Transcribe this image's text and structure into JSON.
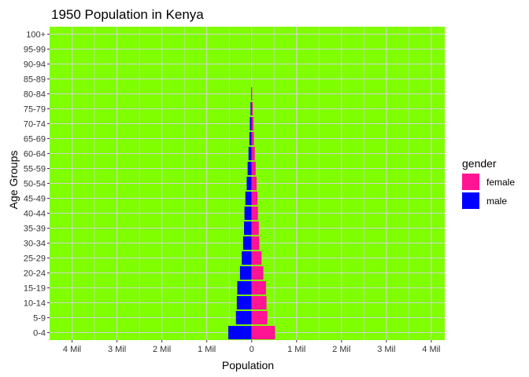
{
  "chart_data": {
    "type": "bar",
    "orientation": "horizontal",
    "title": "1950 Population in Kenya",
    "xlabel": "Population",
    "ylabel": "Age Groups",
    "xlim": [
      -4.5,
      4.3
    ],
    "x_tick_values": [
      -4,
      -3,
      -2,
      -1,
      0,
      1,
      2,
      3,
      4
    ],
    "x_tick_labels": [
      "4 Mil",
      "3 Mil",
      "2 Mil",
      "1 Mil",
      "0",
      "1 Mil",
      "2 Mil",
      "3 Mil",
      "4 Mil"
    ],
    "categories": [
      "0-4",
      "5-9",
      "10-14",
      "15-19",
      "20-24",
      "25-29",
      "30-34",
      "35-39",
      "40-44",
      "45-49",
      "50-54",
      "55-59",
      "60-64",
      "65-69",
      "70-74",
      "75-79",
      "80-84",
      "85-89",
      "90-94",
      "95-99",
      "100+"
    ],
    "series": [
      {
        "name": "male",
        "values": [
          -0.52,
          -0.35,
          -0.33,
          -0.32,
          -0.26,
          -0.22,
          -0.19,
          -0.17,
          -0.16,
          -0.14,
          -0.11,
          -0.09,
          -0.07,
          -0.05,
          -0.04,
          -0.025,
          -0.01,
          0,
          0,
          0,
          0
        ]
      },
      {
        "name": "female",
        "values": [
          0.52,
          0.35,
          0.33,
          0.32,
          0.26,
          0.22,
          0.17,
          0.16,
          0.14,
          0.13,
          0.11,
          0.09,
          0.07,
          0.05,
          0.04,
          0.025,
          0.01,
          0,
          0,
          0,
          0
        ]
      }
    ],
    "grid": true,
    "legend": {
      "title": "gender",
      "placement": "right",
      "entries": [
        {
          "label": "female",
          "color": "#ff1493"
        },
        {
          "label": "male",
          "color": "#0000ff"
        }
      ]
    },
    "colors": {
      "panel_background": "#7fff00",
      "grid": "#d3d3d3",
      "male": "#0000ff",
      "female": "#ff1493"
    }
  }
}
